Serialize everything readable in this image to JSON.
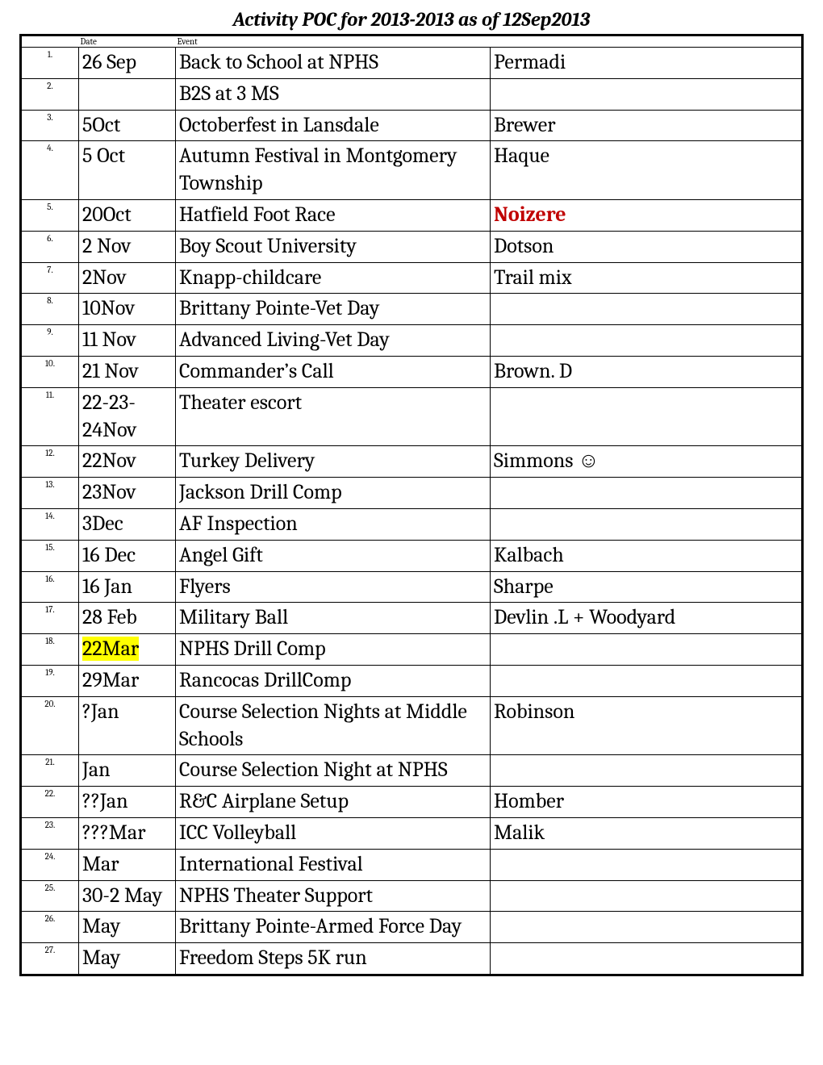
{
  "title": "Activity POC for 2013-2013 as of 12Sep2013",
  "headers": {
    "num": "",
    "date": "Date",
    "event": "Event",
    "poc": ""
  },
  "rows": [
    {
      "n": "1.",
      "date": "26 Sep",
      "event": "Back to School at NPHS",
      "poc": "Permadi"
    },
    {
      "n": "2.",
      "date": "",
      "event": "B2S at 3 MS",
      "poc": ""
    },
    {
      "n": "3.",
      "date": "5Oct",
      "event": "Octoberfest in Lansdale",
      "poc": "Brewer"
    },
    {
      "n": "4.",
      "date": "5 Oct",
      "event": "Autumn Festival in Montgomery Township",
      "poc": "Haque"
    },
    {
      "n": "5.",
      "date": "20Oct",
      "event": "Hatfield Foot Race",
      "poc": "Noizere",
      "poc_style": "red"
    },
    {
      "n": "6.",
      "date": "2 Nov",
      "event": "Boy Scout University",
      "poc": "Dotson"
    },
    {
      "n": "7.",
      "date": "2Nov",
      "event": "Knapp-childcare",
      "poc": "Trail mix"
    },
    {
      "n": "8.",
      "date": "10Nov",
      "event": "Brittany Pointe-Vet Day",
      "poc": ""
    },
    {
      "n": "9.",
      "date": "11 Nov",
      "event": "Advanced Living-Vet Day",
      "poc": ""
    },
    {
      "n": "10.",
      "date": "21 Nov",
      "event": "Commander’s Call",
      "poc": "Brown. D"
    },
    {
      "n": "11.",
      "date": "22-23-24Nov",
      "event": "Theater escort",
      "poc": ""
    },
    {
      "n": "12.",
      "date": "22Nov",
      "event": "Turkey Delivery",
      "poc": "Simmons ☺"
    },
    {
      "n": "13.",
      "date": "23Nov",
      "event": "Jackson Drill Comp",
      "poc": ""
    },
    {
      "n": "14.",
      "date": "3Dec",
      "event": "AF Inspection",
      "poc": ""
    },
    {
      "n": "15.",
      "date": "16 Dec",
      "event": "Angel Gift",
      "poc": "Kalbach"
    },
    {
      "n": "16.",
      "date": "16 Jan",
      "event": "Flyers",
      "poc": "Sharpe"
    },
    {
      "n": "17.",
      "date": "28 Feb",
      "event": "Military Ball",
      "poc": "Devlin .L + Woodyard"
    },
    {
      "n": "18.",
      "date": "22Mar",
      "event": "NPHS Drill Comp",
      "poc": "",
      "date_style": "hl"
    },
    {
      "n": "19.",
      "date": "29Mar",
      "event": "Rancocas DrillComp",
      "poc": ""
    },
    {
      "n": "20.",
      "date": "?Jan",
      "event": "Course Selection Nights at Middle  Schools",
      "poc": "Robinson"
    },
    {
      "n": "21.",
      "date": " Jan",
      "event": "Course Selection Night at NPHS",
      "poc": ""
    },
    {
      "n": "22.",
      "date": "??Jan",
      "event": "R&C Airplane Setup",
      "poc": "Homber"
    },
    {
      "n": "23.",
      "date": "???Mar",
      "event": "ICC Volleyball",
      "poc": "Malik"
    },
    {
      "n": "24.",
      "date": " Mar",
      "event": "International Festival",
      "poc": ""
    },
    {
      "n": "25.",
      "date": "30-2 May",
      "event": "NPHS Theater Support",
      "poc": ""
    },
    {
      "n": "26.",
      "date": " May",
      "event": "Brittany Pointe-Armed Force Day",
      "poc": ""
    },
    {
      "n": "27.",
      "date": " May",
      "event": "Freedom Steps 5K run",
      "poc": ""
    }
  ]
}
